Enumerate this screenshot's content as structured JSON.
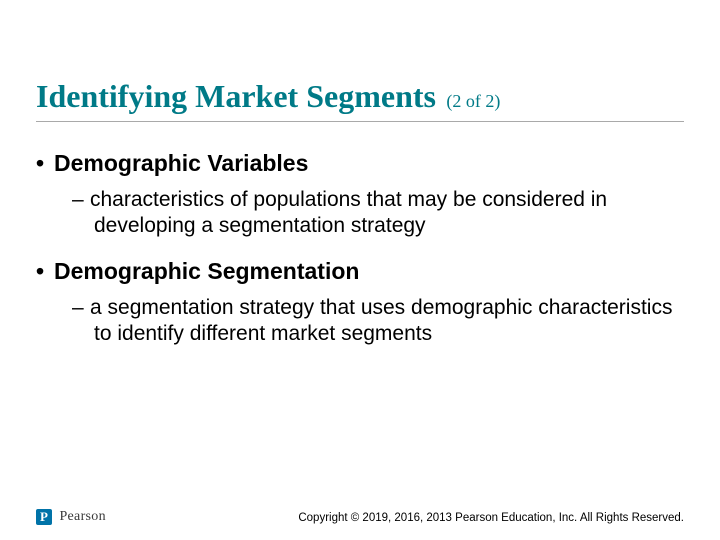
{
  "title": {
    "main": "Identifying Market Segments",
    "sub": "(2 of 2)"
  },
  "colors": {
    "title": "#007a87",
    "rule": "#a9a9a9",
    "text": "#000000",
    "logo_bg": "#0073a8",
    "logo_fg": "#ffffff",
    "background": "#ffffff"
  },
  "typography": {
    "title_family": "Times New Roman",
    "title_size_pt": 24,
    "subtitle_size_pt": 14,
    "body_family": "Arial",
    "l1_size_pt": 18,
    "l2_size_pt": 16,
    "copyright_size_pt": 9
  },
  "bullets": [
    {
      "label": "Demographic Variables",
      "sub": "characteristics of populations that may be considered in developing a segmentation strategy"
    },
    {
      "label": "Demographic Segmentation",
      "sub": "a segmentation strategy that uses demographic characteristics to identify different market segments"
    }
  ],
  "logo": {
    "mark": "P",
    "text": "Pearson"
  },
  "copyright": "Copyright © 2019, 2016, 2013 Pearson Education, Inc. All Rights Reserved."
}
